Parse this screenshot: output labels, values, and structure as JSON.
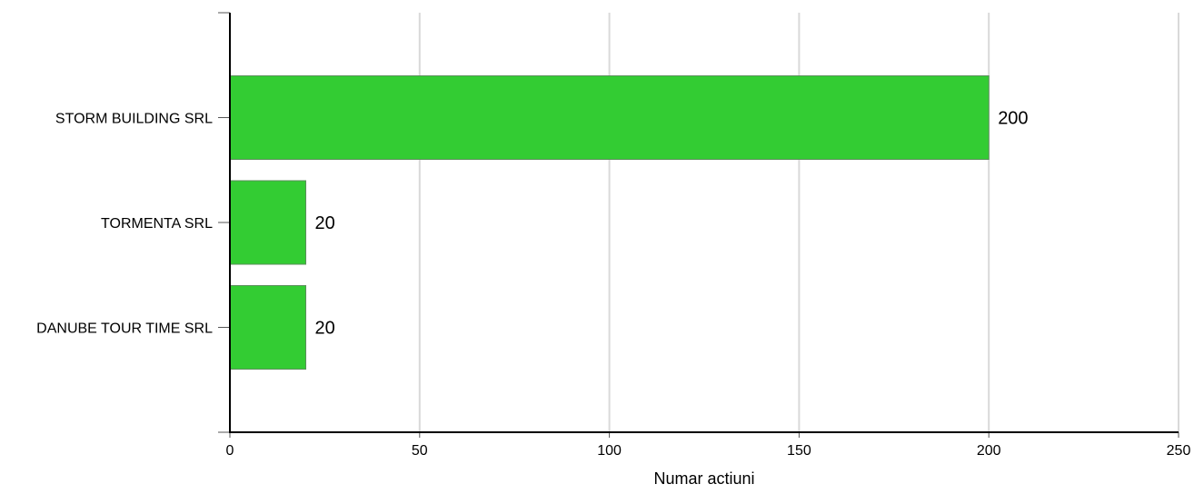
{
  "chart_data": {
    "type": "bar",
    "orientation": "horizontal",
    "categories": [
      "STORM BUILDING SRL",
      "TORMENTA SRL",
      "DANUBE TOUR TIME SRL"
    ],
    "values": [
      200,
      20,
      20
    ],
    "data_labels": [
      "200",
      "20",
      "20"
    ],
    "title": "",
    "xlabel": "Numar actiuni",
    "ylabel": "",
    "xlim": [
      0,
      250
    ],
    "x_ticks": [
      0,
      50,
      100,
      150,
      200,
      250
    ],
    "x_tick_labels": [
      "0",
      "50",
      "100",
      "150",
      "200",
      "250"
    ],
    "grid": true,
    "legend": "none",
    "colors": {
      "bar": "#33cc33",
      "bar_border": "#5a8f5a",
      "grid": "#d9d9d9",
      "axis": "#000000"
    }
  }
}
